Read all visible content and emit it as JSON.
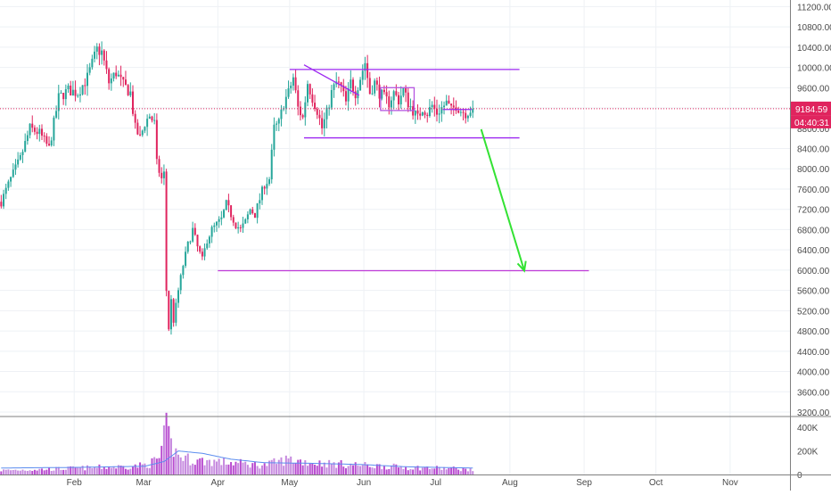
{
  "chart_data": {
    "type": "candlestick",
    "price_axis": {
      "ticks": [
        "11200.00",
        "10800.00",
        "10400.00",
        "10000.00",
        "9600.00",
        "9200.00",
        "8800.00",
        "8400.00",
        "8000.00",
        "7600.00",
        "7200.00",
        "6800.00",
        "6400.00",
        "6000.00",
        "5600.00",
        "5200.00",
        "4800.00",
        "4400.00",
        "4000.00",
        "3600.00",
        "3200.00"
      ],
      "range": [
        3130,
        11330
      ]
    },
    "volume_axis": {
      "ticks": [
        "400K",
        "200K",
        "0"
      ],
      "range": [
        0,
        470000
      ]
    },
    "time_axis": {
      "ticks": [
        {
          "label": "Feb",
          "day": 31
        },
        {
          "label": "Mar",
          "day": 60
        },
        {
          "label": "Apr",
          "day": 91
        },
        {
          "label": "May",
          "day": 121
        },
        {
          "label": "Jun",
          "day": 152
        },
        {
          "label": "Jul",
          "day": 182
        },
        {
          "label": "Aug",
          "day": 213
        },
        {
          "label": "Sep",
          "day": 244
        },
        {
          "label": "Oct",
          "day": 274
        },
        {
          "label": "Nov",
          "day": 305
        }
      ],
      "start_day": 0,
      "end_day": 330
    },
    "price_path": [
      [
        0,
        7350
      ],
      [
        4,
        7800
      ],
      [
        8,
        8200
      ],
      [
        12,
        8800
      ],
      [
        16,
        8700
      ],
      [
        20,
        8400
      ],
      [
        24,
        9400
      ],
      [
        28,
        9550
      ],
      [
        32,
        9500
      ],
      [
        36,
        9800
      ],
      [
        40,
        10350
      ],
      [
        42,
        10300
      ],
      [
        45,
        9700
      ],
      [
        48,
        9900
      ],
      [
        51,
        9650
      ],
      [
        54,
        9500
      ],
      [
        56,
        8800
      ],
      [
        58,
        8600
      ],
      [
        60,
        8900
      ],
      [
        62,
        9050
      ],
      [
        64,
        8900
      ],
      [
        65,
        8100
      ],
      [
        67,
        7800
      ],
      [
        68,
        7900
      ],
      [
        69,
        5600
      ],
      [
        70,
        4850
      ],
      [
        71,
        5400
      ],
      [
        72,
        5000
      ],
      [
        74,
        5600
      ],
      [
        76,
        6100
      ],
      [
        78,
        6500
      ],
      [
        80,
        6800
      ],
      [
        82,
        6450
      ],
      [
        84,
        6200
      ],
      [
        86,
        6600
      ],
      [
        88,
        6800
      ],
      [
        90,
        6900
      ],
      [
        92,
        7000
      ],
      [
        94,
        7300
      ],
      [
        96,
        7100
      ],
      [
        98,
        6900
      ],
      [
        100,
        6800
      ],
      [
        102,
        6950
      ],
      [
        104,
        7200
      ],
      [
        106,
        7100
      ],
      [
        108,
        7400
      ],
      [
        110,
        7700
      ],
      [
        112,
        7800
      ],
      [
        114,
        8800
      ],
      [
        116,
        8900
      ],
      [
        118,
        9300
      ],
      [
        120,
        9500
      ],
      [
        122,
        9800
      ],
      [
        124,
        9200
      ],
      [
        126,
        9000
      ],
      [
        128,
        9700
      ],
      [
        130,
        9400
      ],
      [
        132,
        9150
      ],
      [
        134,
        8800
      ],
      [
        136,
        9100
      ],
      [
        138,
        9500
      ],
      [
        140,
        9700
      ],
      [
        142,
        9600
      ],
      [
        144,
        9300
      ],
      [
        146,
        9700
      ],
      [
        148,
        9500
      ],
      [
        150,
        9800
      ],
      [
        152,
        10100
      ],
      [
        154,
        9500
      ],
      [
        156,
        9700
      ],
      [
        158,
        9500
      ],
      [
        160,
        9400
      ],
      [
        162,
        9300
      ],
      [
        164,
        9500
      ],
      [
        166,
        9350
      ],
      [
        168,
        9550
      ],
      [
        170,
        9300
      ],
      [
        172,
        9150
      ],
      [
        174,
        9000
      ],
      [
        176,
        9200
      ],
      [
        178,
        9100
      ],
      [
        180,
        9250
      ],
      [
        182,
        9100
      ],
      [
        184,
        9200
      ],
      [
        186,
        9300
      ],
      [
        188,
        9150
      ],
      [
        190,
        9250
      ],
      [
        192,
        9150
      ],
      [
        194,
        9100
      ],
      [
        197,
        9184.59
      ]
    ],
    "volume_path": [
      [
        0,
        35000
      ],
      [
        20,
        45000
      ],
      [
        40,
        60000
      ],
      [
        56,
        70000
      ],
      [
        62,
        90000
      ],
      [
        66,
        140000
      ],
      [
        69,
        380000
      ],
      [
        71,
        250000
      ],
      [
        74,
        160000
      ],
      [
        80,
        120000
      ],
      [
        90,
        110000
      ],
      [
        100,
        95000
      ],
      [
        110,
        80000
      ],
      [
        120,
        130000
      ],
      [
        130,
        100000
      ],
      [
        140,
        90000
      ],
      [
        150,
        80000
      ],
      [
        160,
        70000
      ],
      [
        170,
        60000
      ],
      [
        180,
        55000
      ],
      [
        190,
        50000
      ],
      [
        197,
        40000
      ]
    ],
    "volume_ma_path": [
      [
        0,
        55000
      ],
      [
        30,
        60000
      ],
      [
        60,
        70000
      ],
      [
        68,
        110000
      ],
      [
        74,
        200000
      ],
      [
        84,
        180000
      ],
      [
        96,
        130000
      ],
      [
        110,
        100000
      ],
      [
        130,
        95000
      ],
      [
        150,
        85000
      ],
      [
        170,
        65000
      ],
      [
        197,
        55000
      ]
    ],
    "current_price": {
      "value": 9184.59,
      "label": "9184.59",
      "countdown": "04:40:31"
    },
    "annotations": {
      "horizontal_lines": [
        {
          "price": 9960,
          "from_day": 121,
          "to_day": 217,
          "color": "#9c27f0"
        },
        {
          "price": 8610,
          "from_day": 127,
          "to_day": 217,
          "color": "#9c27f0"
        },
        {
          "price": 5990,
          "from_day": 91,
          "to_day": 246,
          "color": "#c03bd8"
        },
        {
          "price": 9170,
          "from_day": 185,
          "to_day": 197,
          "color": "#9c27f0"
        }
      ],
      "trend_lines": [
        {
          "from": [
            127,
            10050
          ],
          "to": [
            150,
            9450
          ],
          "color": "#9c27f0"
        }
      ],
      "rectangles": [
        {
          "from": [
            159,
            9600
          ],
          "to": [
            173,
            9150
          ],
          "color": "#b455e0"
        }
      ],
      "arrow": {
        "from": [
          201,
          8780
        ],
        "to": [
          219,
          5990
        ],
        "color": "#33e233"
      }
    },
    "colors": {
      "up": "#26a69a",
      "down": "#e0245e",
      "volume_up": "#c68adf",
      "volume_down": "#b84bd0",
      "volume_ma": "#5b8def",
      "grid": "#eef1f5",
      "current_price_line": "#e0245e"
    }
  }
}
